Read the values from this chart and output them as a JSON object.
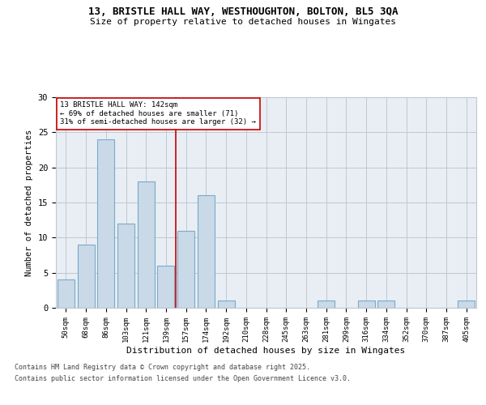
{
  "title1": "13, BRISTLE HALL WAY, WESTHOUGHTON, BOLTON, BL5 3QA",
  "title2": "Size of property relative to detached houses in Wingates",
  "xlabel": "Distribution of detached houses by size in Wingates",
  "ylabel": "Number of detached properties",
  "categories": [
    "50sqm",
    "68sqm",
    "86sqm",
    "103sqm",
    "121sqm",
    "139sqm",
    "157sqm",
    "174sqm",
    "192sqm",
    "210sqm",
    "228sqm",
    "245sqm",
    "263sqm",
    "281sqm",
    "299sqm",
    "316sqm",
    "334sqm",
    "352sqm",
    "370sqm",
    "387sqm",
    "405sqm"
  ],
  "values": [
    4,
    9,
    24,
    12,
    18,
    6,
    11,
    16,
    1,
    0,
    0,
    0,
    0,
    1,
    0,
    1,
    1,
    0,
    0,
    0,
    1
  ],
  "bar_color": "#c9d9e8",
  "bar_edge_color": "#7aaac8",
  "bar_edge_width": 0.8,
  "red_line_x": 5.5,
  "annotation_title": "13 BRISTLE HALL WAY: 142sqm",
  "annotation_line1": "← 69% of detached houses are smaller (71)",
  "annotation_line2": "31% of semi-detached houses are larger (32) →",
  "red_color": "#cc0000",
  "annotation_box_color": "#ffffff",
  "annotation_box_edge": "#cc0000",
  "grid_color": "#c0c8d0",
  "bg_color": "#e8eef4",
  "ylim": [
    0,
    30
  ],
  "yticks": [
    0,
    5,
    10,
    15,
    20,
    25,
    30
  ],
  "footer1": "Contains HM Land Registry data © Crown copyright and database right 2025.",
  "footer2": "Contains public sector information licensed under the Open Government Licence v3.0."
}
